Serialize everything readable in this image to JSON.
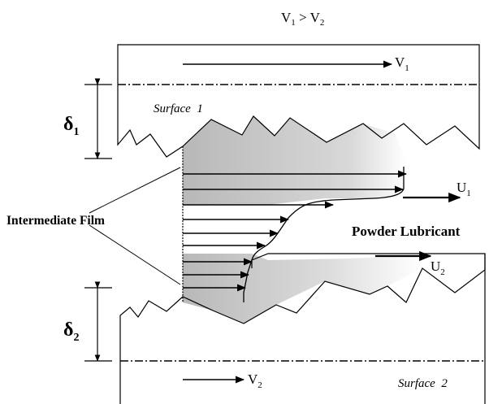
{
  "labels": {
    "top_relation": {
      "a": "V",
      "a_sub": "1",
      "op": " > ",
      "b": "V",
      "b_sub": "2"
    },
    "v1": {
      "base": "V",
      "sub": "1"
    },
    "v2": {
      "base": "V",
      "sub": "2"
    },
    "u1": {
      "base": "U",
      "sub": "1"
    },
    "u2": {
      "base": "U",
      "sub": "2"
    },
    "delta1": {
      "base": "δ",
      "sub": "1"
    },
    "delta2": {
      "base": "δ",
      "sub": "2"
    },
    "surface1": "Surface  1",
    "surface2": "Surface  2",
    "intermediate_film": "Intermediate Film",
    "powder_lubricant": "Powder Lubricant"
  },
  "colors": {
    "film_shade_dark": "#b8b8b8",
    "film_shade_light": "#ffffff",
    "line": "#000000"
  }
}
